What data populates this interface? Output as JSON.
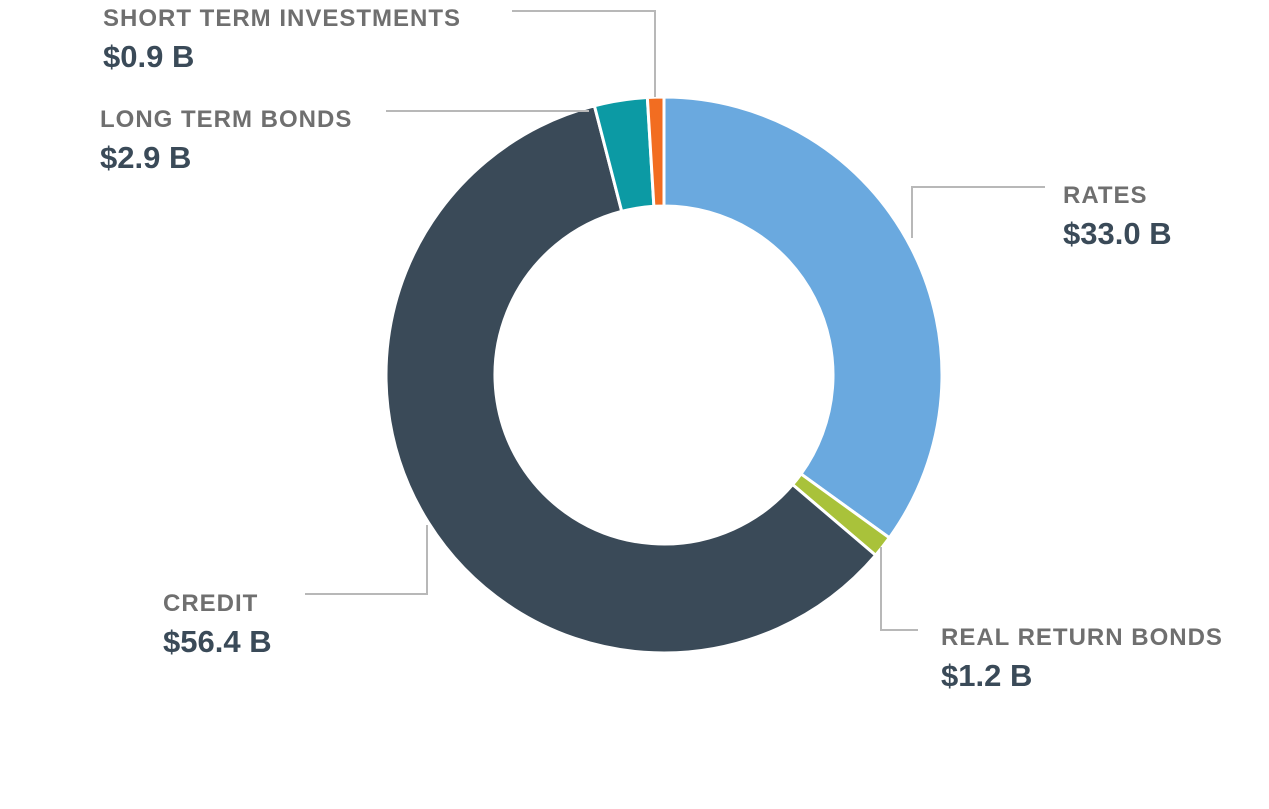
{
  "chart_data": {
    "type": "pie",
    "variant": "donut",
    "unit": "B",
    "slices": [
      {
        "label": "RATES",
        "value": 33.0,
        "value_label": "$33.0 B",
        "color": "#6aa9df"
      },
      {
        "label": "REAL RETURN BONDS",
        "value": 1.2,
        "value_label": "$1.2 B",
        "color": "#a9c23a"
      },
      {
        "label": "CREDIT",
        "value": 56.4,
        "value_label": "$56.4 B",
        "color": "#3a4a58"
      },
      {
        "label": "LONG TERM BONDS",
        "value": 2.9,
        "value_label": "$2.9 B",
        "color": "#0c9aa4"
      },
      {
        "label": "SHORT TERM INVESTMENTS",
        "value": 0.9,
        "value_label": "$0.9 B",
        "color": "#f26d21"
      }
    ]
  }
}
